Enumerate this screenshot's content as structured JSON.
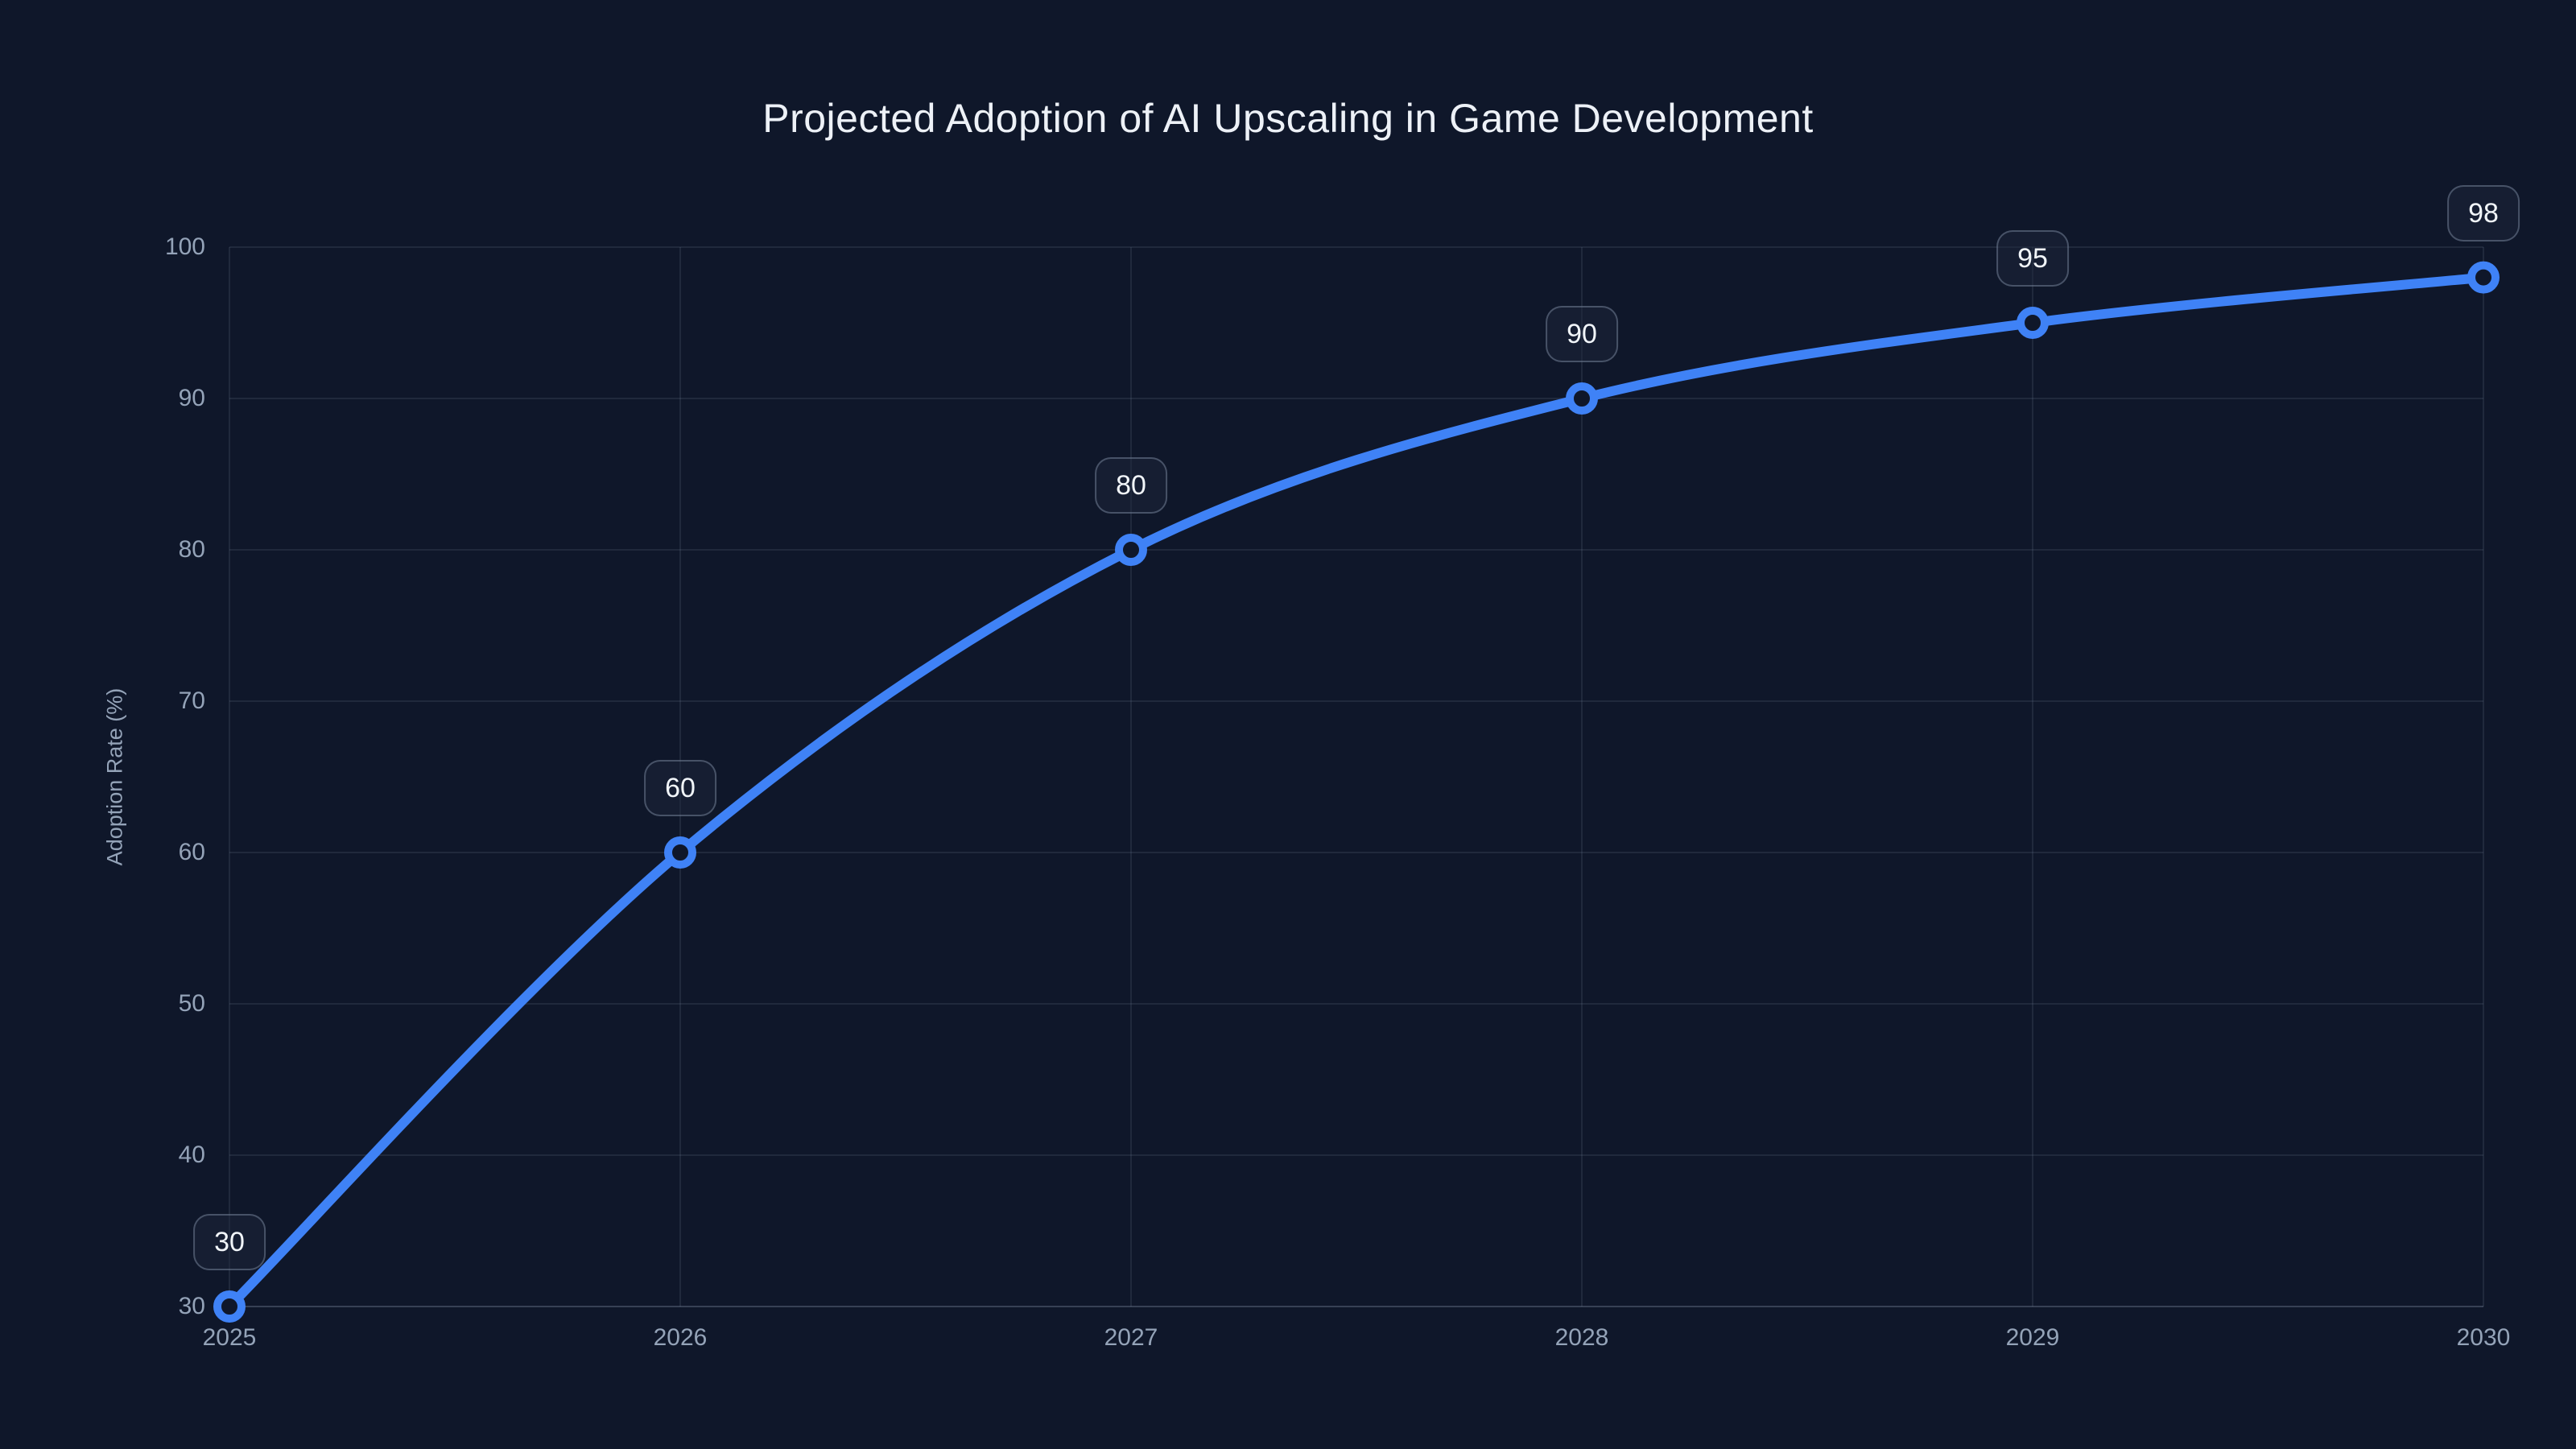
{
  "chart_data": {
    "type": "line",
    "title": "Projected Adoption of AI Upscaling in Game Development",
    "xlabel": "",
    "ylabel": "Adoption Rate (%)",
    "x": [
      2025,
      2026,
      2027,
      2028,
      2029,
      2030
    ],
    "x_tick_labels": [
      "2025",
      "2026",
      "2027",
      "2028",
      "2029",
      "2030"
    ],
    "series": [
      {
        "name": "Adoption Rate",
        "values": [
          30,
          60,
          80,
          90,
          95,
          98
        ]
      }
    ],
    "point_labels": [
      "30",
      "60",
      "80",
      "90",
      "95",
      "98"
    ],
    "xlim": [
      2025,
      2030
    ],
    "ylim": [
      30,
      100
    ],
    "y_ticks": [
      30,
      40,
      50,
      60,
      70,
      80,
      90,
      100
    ],
    "grid": true,
    "legend": false,
    "line_shape": "spline",
    "marker_style": "open-circle"
  },
  "colors": {
    "background": "#0f172a",
    "line": "#3f82f6",
    "marker_ring": "#3f82f6",
    "marker_fill": "#0f172a",
    "grid": "rgba(148,163,184,0.13)",
    "axis_line": "rgba(148,163,184,0.3)",
    "tick_label": "#94a3b8",
    "title": "#edf1f7",
    "badge_bg": "rgba(30,41,59,0.45)",
    "badge_border": "rgba(148,163,184,0.4)",
    "badge_text": "#f1f5f9"
  }
}
